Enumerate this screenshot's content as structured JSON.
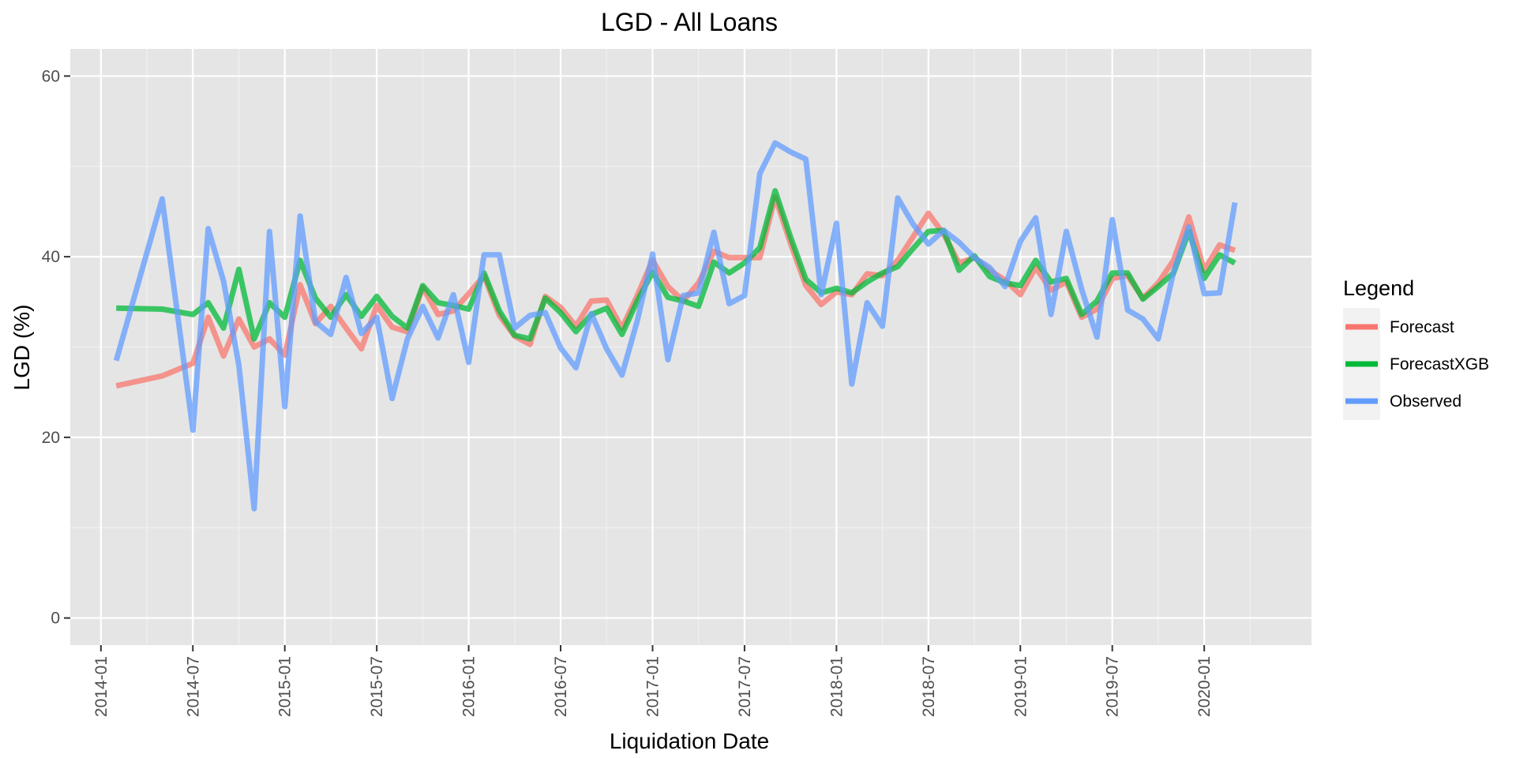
{
  "chart_data": {
    "type": "line",
    "title": "LGD - All Loans",
    "xlabel": "Liquidation Date",
    "ylabel": "LGD (%)",
    "ylim": [
      -3,
      63
    ],
    "yticks": [
      0,
      20,
      40,
      60
    ],
    "ytick_labels": [
      "0",
      "20",
      "40",
      "60"
    ],
    "xlim": [
      "2013-11",
      "2020-08"
    ],
    "xticks": [
      "2014-01",
      "2014-07",
      "2015-01",
      "2015-07",
      "2016-01",
      "2016-07",
      "2017-01",
      "2017-07",
      "2018-01",
      "2018-07",
      "2019-01",
      "2019-07",
      "2020-01"
    ],
    "grid": true,
    "legend": {
      "title": "Legend",
      "position": "right"
    },
    "x": [
      "2014-02",
      "2014-05",
      "2014-07",
      "2014-08",
      "2014-09",
      "2014-10",
      "2014-11",
      "2014-12",
      "2015-01",
      "2015-02",
      "2015-03",
      "2015-04",
      "2015-05",
      "2015-06",
      "2015-07",
      "2015-08",
      "2015-09",
      "2015-10",
      "2015-11",
      "2015-12",
      "2016-01",
      "2016-02",
      "2016-03",
      "2016-04",
      "2016-05",
      "2016-06",
      "2016-07",
      "2016-08",
      "2016-09",
      "2016-10",
      "2016-11",
      "2016-12",
      "2017-01",
      "2017-02",
      "2017-03",
      "2017-04",
      "2017-05",
      "2017-06",
      "2017-07",
      "2017-08",
      "2017-09",
      "2017-10",
      "2017-11",
      "2017-12",
      "2018-01",
      "2018-02",
      "2018-03",
      "2018-04",
      "2018-05",
      "2018-06",
      "2018-07",
      "2018-08",
      "2018-09",
      "2018-10",
      "2018-11",
      "2018-12",
      "2019-01",
      "2019-02",
      "2019-03",
      "2019-04",
      "2019-05",
      "2019-06",
      "2019-07",
      "2019-08",
      "2019-09",
      "2019-10",
      "2019-11",
      "2019-12",
      "2020-01",
      "2020-02",
      "2020-03"
    ],
    "series": [
      {
        "name": "Forecast",
        "color": "#f8766d",
        "values": [
          25.7,
          26.8,
          28.2,
          33.3,
          29.0,
          33.1,
          30.0,
          30.9,
          29.1,
          36.9,
          32.6,
          34.5,
          32.1,
          29.8,
          34.6,
          32.2,
          31.7,
          36.6,
          33.6,
          34.0,
          35.9,
          37.9,
          33.5,
          31.2,
          30.3,
          35.6,
          34.4,
          32.3,
          35.1,
          35.2,
          32.1,
          35.7,
          39.6,
          36.7,
          35.1,
          37.1,
          40.6,
          39.9,
          39.9,
          39.9,
          46.6,
          41.5,
          36.8,
          34.7,
          36.1,
          35.8,
          38.1,
          37.9,
          39.6,
          42.2,
          44.8,
          42.5,
          39.3,
          39.9,
          38.5,
          37.4,
          35.8,
          38.8,
          36.3,
          37.2,
          33.3,
          34.2,
          37.6,
          37.9,
          35.4,
          37.1,
          39.6,
          44.4,
          38.5,
          41.3,
          40.7
        ]
      },
      {
        "name": "ForecastXGB",
        "color": "#00ba38",
        "values": [
          34.3,
          34.2,
          33.6,
          34.9,
          32.1,
          38.6,
          30.9,
          34.9,
          33.3,
          39.6,
          35.4,
          33.3,
          35.8,
          33.4,
          35.6,
          33.4,
          32.1,
          36.8,
          34.9,
          34.6,
          34.2,
          38.2,
          34.0,
          31.3,
          30.9,
          35.4,
          33.8,
          31.7,
          33.6,
          34.3,
          31.4,
          35.1,
          38.3,
          35.5,
          35.1,
          34.5,
          39.4,
          38.2,
          39.3,
          41.0,
          47.3,
          42.2,
          37.5,
          36.0,
          36.5,
          36.0,
          37.2,
          38.2,
          38.9,
          40.9,
          42.8,
          42.9,
          38.5,
          40.1,
          37.8,
          37.1,
          36.8,
          39.6,
          37.2,
          37.6,
          33.6,
          35.1,
          38.2,
          38.2,
          35.3,
          36.7,
          38.2,
          42.8,
          37.6,
          40.2,
          39.3
        ]
      },
      {
        "name": "Observed",
        "color": "#619cff",
        "values": [
          28.5,
          46.4,
          20.8,
          43.1,
          37.3,
          28.0,
          12.1,
          42.8,
          23.4,
          44.5,
          32.8,
          31.4,
          37.7,
          31.5,
          33.3,
          24.3,
          30.9,
          34.5,
          31.0,
          35.8,
          28.3,
          40.2,
          40.2,
          32.1,
          33.5,
          33.8,
          29.9,
          27.7,
          33.7,
          29.8,
          26.9,
          32.9,
          40.3,
          28.6,
          35.7,
          36.0,
          42.7,
          34.8,
          35.7,
          49.2,
          52.6,
          51.6,
          50.8,
          35.8,
          43.7,
          25.9,
          34.9,
          32.3,
          46.5,
          43.6,
          41.4,
          42.9,
          41.6,
          39.9,
          38.8,
          36.7,
          41.7,
          44.3,
          33.6,
          42.8,
          36.4,
          31.1,
          44.1,
          34.1,
          33.1,
          30.9,
          38.3,
          43.3,
          35.9,
          36.0,
          46.0
        ]
      }
    ]
  }
}
